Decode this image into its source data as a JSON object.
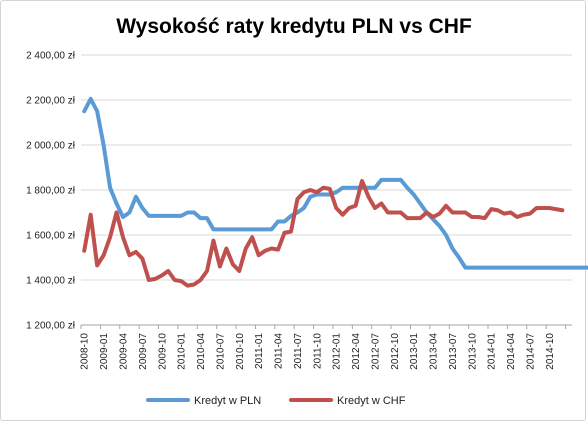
{
  "chart_data": {
    "type": "line",
    "title": "Wysokość raty kredytu PLN vs CHF",
    "xlabel": "",
    "ylabel": "",
    "ylim": [
      1200,
      2400
    ],
    "y_ticks": [
      "1 200,00 zł",
      "1 400,00 zł",
      "1 600,00 zł",
      "1 800,00 zł",
      "2 000,00 zł",
      "2 200,00 zł",
      "2 400,00 zł"
    ],
    "y_tick_values": [
      1200,
      1400,
      1600,
      1800,
      2000,
      2200,
      2400
    ],
    "x_start": "2008-10",
    "x_labels": [
      "2008-10",
      "2009-01",
      "2009-04",
      "2009-07",
      "2009-10",
      "2010-01",
      "2010-04",
      "2010-07",
      "2010-10",
      "2011-01",
      "2011-04",
      "2011-07",
      "2011-10",
      "2012-01",
      "2012-04",
      "2012-07",
      "2012-10",
      "2013-01",
      "2013-04",
      "2013-07",
      "2013-10",
      "2014-01",
      "2014-04",
      "2014-07",
      "2014-10"
    ],
    "grid": "horizontal",
    "legend": "bottom",
    "colors": {
      "pln": "#5b9bd5",
      "chf": "#c0504d"
    },
    "series": [
      {
        "name": "Kredyt w PLN",
        "values": [
          2150,
          2205,
          2150,
          2000,
          1810,
          1740,
          1680,
          1700,
          1770,
          1720,
          1685,
          1685,
          1685,
          1685,
          1685,
          1685,
          1700,
          1700,
          1675,
          1675,
          1625,
          1625,
          1625,
          1625,
          1625,
          1625,
          1625,
          1625,
          1625,
          1625,
          1660,
          1660,
          1685,
          1700,
          1720,
          1770,
          1780,
          1780,
          1780,
          1790,
          1810,
          1810,
          1810,
          1810,
          1810,
          1810,
          1845,
          1845,
          1845,
          1845,
          1810,
          1780,
          1740,
          1700,
          1670,
          1640,
          1600,
          1540,
          1500,
          1455,
          1455,
          1455,
          1455,
          1455,
          1455,
          1455,
          1455,
          1455,
          1455,
          1455,
          1455,
          1455,
          1455,
          1455,
          1455,
          1455,
          1455,
          1455,
          1455,
          1455,
          1435,
          1390,
          1345,
          1345,
          1345
        ]
      },
      {
        "name": "Kredyt w CHF",
        "values": [
          1530,
          1690,
          1465,
          1510,
          1590,
          1700,
          1590,
          1510,
          1525,
          1495,
          1400,
          1405,
          1420,
          1440,
          1400,
          1395,
          1375,
          1380,
          1400,
          1440,
          1575,
          1460,
          1540,
          1470,
          1440,
          1540,
          1590,
          1510,
          1530,
          1540,
          1535,
          1610,
          1615,
          1760,
          1790,
          1800,
          1790,
          1810,
          1805,
          1720,
          1690,
          1720,
          1730,
          1840,
          1770,
          1720,
          1740,
          1700,
          1700,
          1700,
          1675,
          1675,
          1675,
          1700,
          1680,
          1695,
          1730,
          1700,
          1700,
          1700,
          1680,
          1680,
          1675,
          1715,
          1710,
          1695,
          1700,
          1680,
          1690,
          1695,
          1720,
          1720,
          1720,
          1715,
          1710
        ]
      }
    ]
  }
}
